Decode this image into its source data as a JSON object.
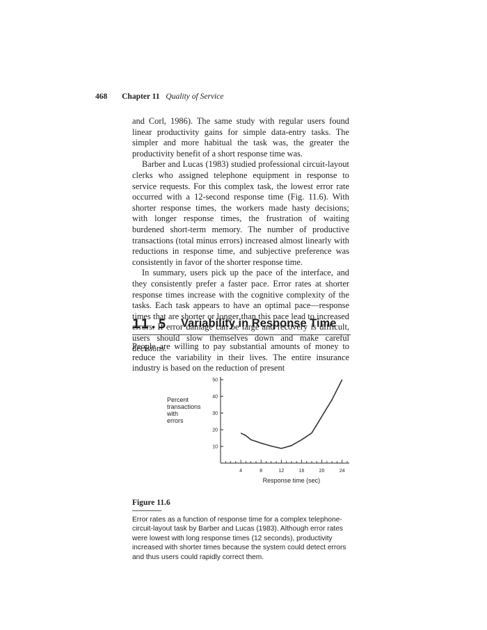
{
  "header": {
    "page_number": "468",
    "chapter": "Chapter 11",
    "chapter_title": "Quality of Service"
  },
  "paragraphs": {
    "p1": "and Corl, 1986). The same study with regular users found linear productivity gains for simple data-entry tasks. The simpler and more habitual the task was, the greater the productivity benefit of a short response time was.",
    "p2": "Barber and Lucas (1983) studied professional circuit-layout clerks who assigned telephone equipment in response to service requests. For this complex task, the lowest error rate occurred with a 12-second response time (Fig. 11.6). With shorter response times, the workers made hasty decisions; with longer response times, the frustration of waiting burdened short-term memory. The number of productive transactions (total minus errors) increased almost linearly with reductions in response time, and subjective preference was consistently in favor of the shorter response time.",
    "p3": "In summary, users pick up the pace of the interface, and they consistently prefer a faster pace. Error rates at shorter response times increase with the cognitive complexity of the tasks. Each task appears to have an optimal pace—response times that are shorter or longer than this pace lead to increased errors. If error damage can be large and recovery is difficult, users should slow themselves down and make careful decisions."
  },
  "section": {
    "number": "11.5",
    "title": "Variability in Response Time",
    "p1": "People are willing to pay substantial amounts of money to reduce the variability in their lives. The entire insurance industry is based on the reduction of present"
  },
  "chart_data": {
    "type": "line",
    "ylabel": [
      "Percent",
      "transactions",
      "with",
      "errors"
    ],
    "xlabel": "Response time (sec)",
    "xlim": [
      0,
      25
    ],
    "ylim": [
      0,
      50
    ],
    "xticks": [
      4,
      8,
      12,
      16,
      20,
      24
    ],
    "yticks": [
      10,
      20,
      30,
      40,
      50
    ],
    "x": [
      4,
      5,
      6,
      8,
      10,
      12,
      14,
      16,
      18,
      20,
      22,
      24
    ],
    "y": [
      18,
      16.5,
      14,
      12,
      10.2,
      8.8,
      10.5,
      14,
      18,
      28,
      38,
      50
    ]
  },
  "figure": {
    "label": "Figure 11.6",
    "caption": "Error rates as a function of response time for a complex telephone-circuit-layout task by Barber and Lucas (1983). Although error rates were lowest with long response times (12 seconds), productivity increased with shorter times because the system could detect errors and thus users could rapidly correct them."
  }
}
